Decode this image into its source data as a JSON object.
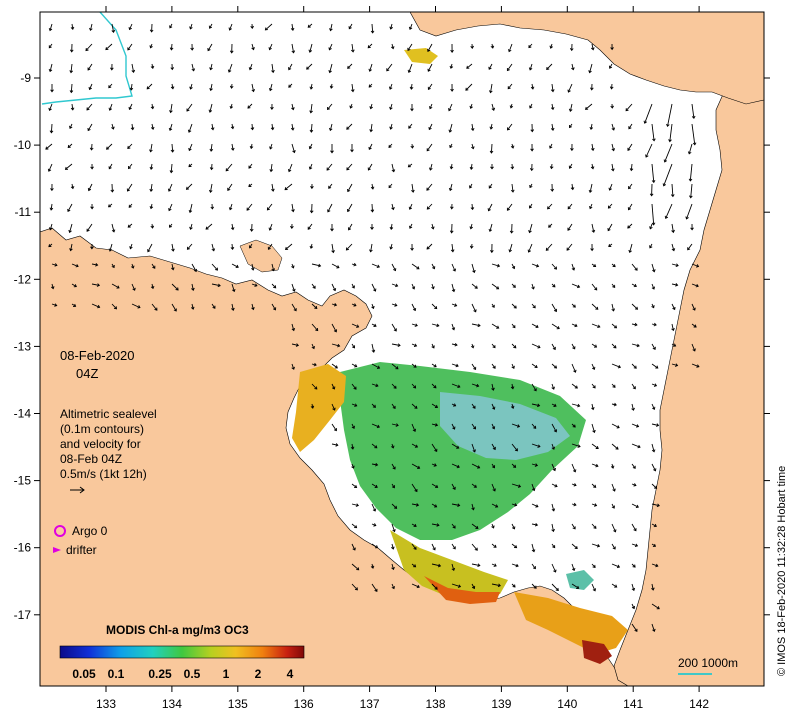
{
  "map": {
    "lon_ticks": [
      "133",
      "134",
      "135",
      "136",
      "137",
      "138",
      "139",
      "140",
      "141",
      "142"
    ],
    "lat_ticks": [
      "-9",
      "-10",
      "-11",
      "-12",
      "-13",
      "-14",
      "-15",
      "-16",
      "-17"
    ],
    "land_color": "#f9c89c",
    "sea_color": "#ffffff",
    "coast_color": "#000000"
  },
  "annotation": {
    "date": "08-Feb-2020",
    "time": "04Z",
    "desc_lines": [
      "Altimetric sealevel",
      "(0.1m contours)",
      "and velocity for",
      "08-Feb 04Z",
      "0.5m/s (1kt 12h)"
    ]
  },
  "legend": {
    "argo_label": "Argo 0",
    "argo_color": "#e000e0",
    "drifter_label": "drifter",
    "drifter_color": "#e000e0"
  },
  "colorbar": {
    "title": "MODIS Chl-a mg/m3 OC3",
    "ticks": [
      "0.05",
      "0.1",
      "0.25",
      "0.5",
      "1",
      "2",
      "4"
    ]
  },
  "scale": {
    "text": "200  1000m",
    "color": "#40c8c8"
  },
  "credit": "© IMOS 18-Feb-2020 11:32:28 Hobart time"
}
